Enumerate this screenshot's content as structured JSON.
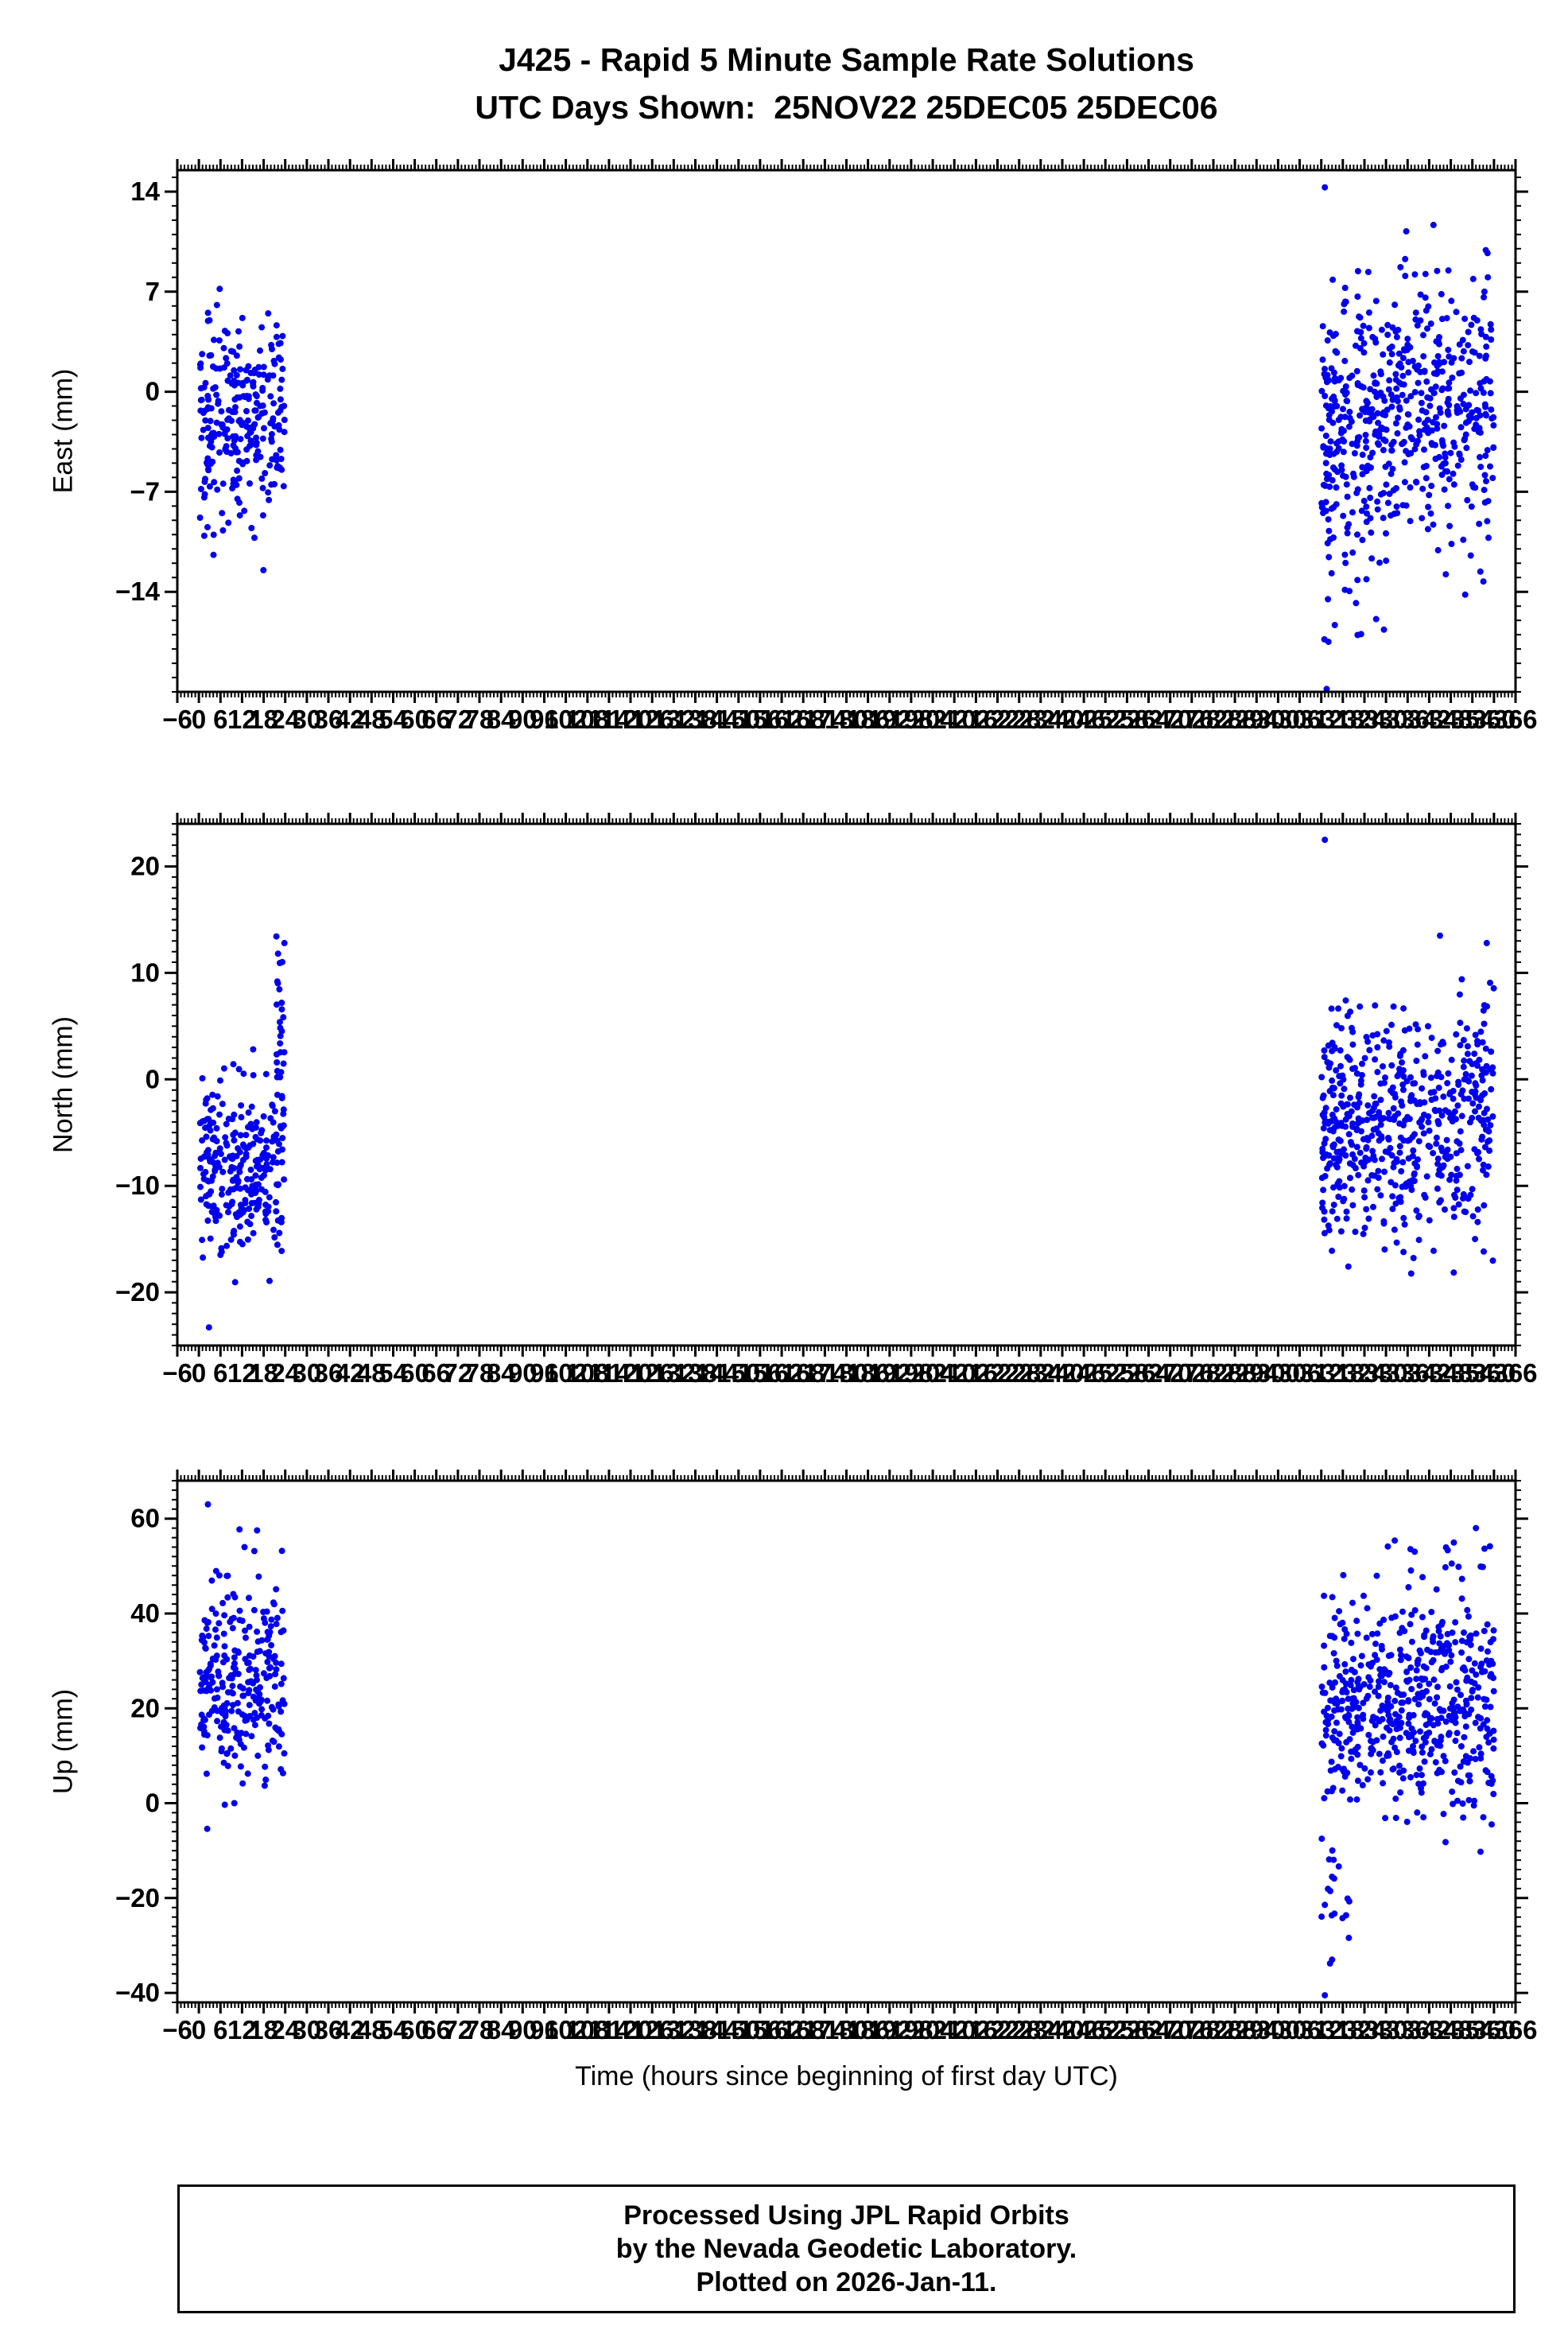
{
  "title_line1": "J425 - Rapid 5 Minute Sample Rate Solutions",
  "title_line2": "UTC Days Shown:  25NOV22 25DEC05 25DEC06",
  "xlabel": "Time (hours since beginning of first day UTC)",
  "footer_lines": [
    "Processed Using JPL Rapid Orbits",
    "by the Nevada Geodetic Laboratory.",
    "Plotted on 2026-Jan-11."
  ],
  "point_color": "#0000EE",
  "frame_color": "#000000",
  "chart_data": [
    {
      "type": "scatter",
      "name": "east",
      "ylabel": "East (mm)",
      "ylim": [
        -21,
        15.5
      ],
      "yticks": [
        14,
        7,
        0,
        -7,
        -14
      ],
      "y_minor_step": 1,
      "xlim": [
        -6,
        366
      ],
      "x_major_step": 6,
      "x_minor_step": 1,
      "clusters": [
        {
          "x0": 0.3,
          "x1": 23.8,
          "n": 270,
          "mean": -1.8,
          "sd": 3.6,
          "ymin": -14.6,
          "ymax": 7.6,
          "seed": 11
        },
        {
          "x0": 312,
          "x1": 360,
          "n": 540,
          "mean": -1.5,
          "sd": 4.2,
          "ymin": -13.5,
          "ymax": 9.2,
          "seed": 12
        },
        {
          "x0": 312,
          "x1": 330,
          "n": 28,
          "mean": -12,
          "sd": 4,
          "ymin": -18.7,
          "ymax": -6,
          "seed": 13
        },
        {
          "x0": 334,
          "x1": 360,
          "n": 14,
          "mean": 9,
          "sd": 3,
          "ymin": 5,
          "ymax": 13.8,
          "seed": 14
        }
      ],
      "outliers": [
        [
          313,
          14.3
        ],
        [
          314,
          -17.5
        ],
        [
          313.5,
          -20.8
        ],
        [
          352,
          -14.2
        ]
      ]
    },
    {
      "type": "scatter",
      "name": "north",
      "ylabel": "North (mm)",
      "ylim": [
        -25,
        24
      ],
      "yticks": [
        20,
        10,
        0,
        -10,
        -20
      ],
      "y_minor_step": 1,
      "xlim": [
        -6,
        366
      ],
      "x_major_step": 6,
      "x_minor_step": 1,
      "clusters": [
        {
          "x0": 0.3,
          "x1": 23.8,
          "n": 270,
          "mean": -8,
          "sd": 4.5,
          "ymin": -19.5,
          "ymax": 3,
          "seed": 21
        },
        {
          "x0": 21.5,
          "x1": 24,
          "n": 30,
          "mean": 5,
          "sd": 6,
          "ymin": -6,
          "ymax": 14,
          "seed": 22
        },
        {
          "x0": 312,
          "x1": 360,
          "n": 560,
          "mean": -4.5,
          "sd": 5.5,
          "ymin": -18.5,
          "ymax": 14,
          "seed": 23
        }
      ],
      "outliers": [
        [
          2.8,
          -23.3
        ],
        [
          313,
          22.5
        ],
        [
          345,
          13.5
        ],
        [
          358,
          12.8
        ]
      ]
    },
    {
      "type": "scatter",
      "name": "up",
      "ylabel": "Up (mm)",
      "ylim": [
        -42,
        68
      ],
      "yticks": [
        60,
        40,
        20,
        0,
        -20,
        -40
      ],
      "y_minor_step": 2,
      "xlim": [
        -6,
        366
      ],
      "x_major_step": 6,
      "x_minor_step": 1,
      "clusters": [
        {
          "x0": 0.3,
          "x1": 23.8,
          "n": 270,
          "mean": 26,
          "sd": 11,
          "ymin": -6,
          "ymax": 58,
          "seed": 31
        },
        {
          "x0": 312,
          "x1": 360,
          "n": 540,
          "mean": 21,
          "sd": 11,
          "ymin": -12,
          "ymax": 50,
          "seed": 32
        },
        {
          "x0": 330,
          "x1": 360,
          "n": 15,
          "mean": 52,
          "sd": 4,
          "ymin": 46,
          "ymax": 59,
          "seed": 33
        },
        {
          "x0": 312,
          "x1": 320,
          "n": 18,
          "mean": -18,
          "sd": 10,
          "ymin": -41,
          "ymax": -2,
          "seed": 34
        }
      ],
      "outliers": [
        [
          2.5,
          63
        ],
        [
          313,
          -40.5
        ],
        [
          315,
          -33
        ],
        [
          355,
          58
        ]
      ]
    }
  ]
}
